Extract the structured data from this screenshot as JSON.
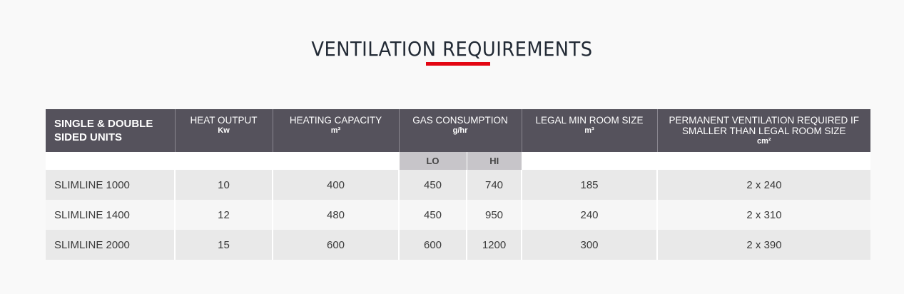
{
  "title": "VENTILATION REQUIREMENTS",
  "colors": {
    "accent": "#e30613",
    "header_bg": "#55525c",
    "subheader_bg": "#c7c5c9"
  },
  "table": {
    "headers": [
      {
        "label": "SINGLE & DOUBLE SIDED UNITS",
        "unit": ""
      },
      {
        "label": "HEAT OUTPUT",
        "unit": "Kw"
      },
      {
        "label": "HEATING CAPACITY",
        "unit": "m³"
      },
      {
        "label": "GAS CONSUMPTION",
        "unit": "g/hr"
      },
      {
        "label": "LEGAL MIN ROOM SIZE",
        "unit": "m³"
      },
      {
        "label": "PERMANENT VENTILATION REQUIRED IF SMALLER THAN LEGAL ROOM SIZE",
        "unit": "cm²"
      }
    ],
    "sub_headers": {
      "lo": "LO",
      "hi": "HI"
    },
    "rows": [
      [
        "SLIMLINE 1000",
        "10",
        "400",
        "450",
        "740",
        "185",
        "2 x 240"
      ],
      [
        "SLIMLINE 1400",
        "12",
        "480",
        "450",
        "950",
        "240",
        "2 x 310"
      ],
      [
        "SLIMLINE 2000",
        "15",
        "600",
        "600",
        "1200",
        "300",
        "2 x 390"
      ]
    ]
  }
}
